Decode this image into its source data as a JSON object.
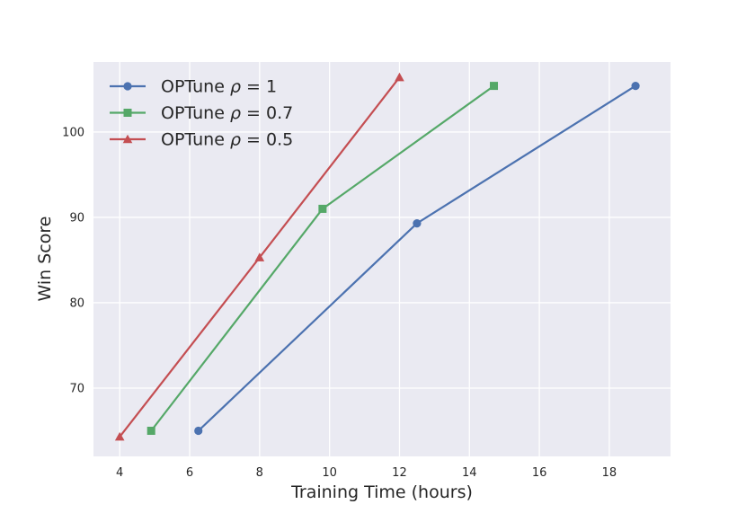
{
  "chart_data": {
    "type": "line",
    "xlabel": "Training Time (hours)",
    "ylabel": "Win Score",
    "xlim": [
      3.25,
      19.75
    ],
    "ylim": [
      62,
      108.2
    ],
    "xticks": [
      4,
      6,
      8,
      10,
      12,
      14,
      16,
      18
    ],
    "yticks": [
      70,
      80,
      90,
      100
    ],
    "grid": true,
    "legend_position": "top-left",
    "series": [
      {
        "name": "OPTune ρ = 1",
        "name_prefix": "OPTune",
        "name_symbol": "ρ",
        "name_suffix": " = 1",
        "color": "#4c72b0",
        "marker": "circle",
        "x": [
          6.25,
          12.5,
          18.75
        ],
        "y": [
          65.0,
          89.3,
          105.4
        ]
      },
      {
        "name": "OPTune ρ = 0.7",
        "name_prefix": "OPTune",
        "name_symbol": "ρ",
        "name_suffix": " = 0.7",
        "color": "#55a868",
        "marker": "square",
        "x": [
          4.9,
          9.8,
          14.7
        ],
        "y": [
          65.0,
          91.0,
          105.4
        ]
      },
      {
        "name": "OPTune ρ = 0.5",
        "name_prefix": "OPTune",
        "name_symbol": "ρ",
        "name_suffix": " = 0.5",
        "color": "#c44e52",
        "marker": "triangle",
        "x": [
          4.0,
          8.0,
          12.0
        ],
        "y": [
          64.3,
          85.3,
          106.4
        ]
      }
    ],
    "background_color": "#eaeaf2",
    "grid_color": "#ffffff"
  }
}
